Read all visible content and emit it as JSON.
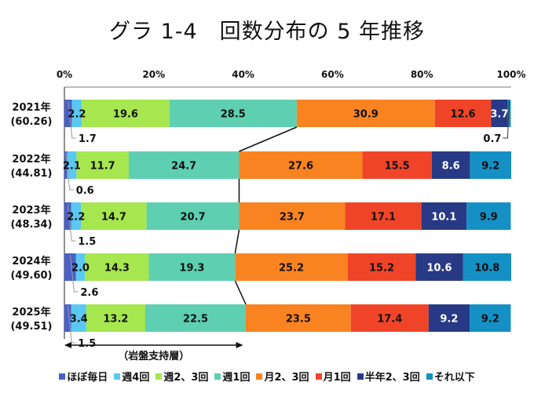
{
  "chart_data": {
    "type": "bar",
    "orientation": "horizontal-stacked-100",
    "title": "グラ 1-4　回数分布の 5 年推移",
    "x_ticks": [
      "0%",
      "20%",
      "40%",
      "60%",
      "80%",
      "100%"
    ],
    "xlim": [
      0,
      100
    ],
    "categories": [
      {
        "year": "2021年",
        "sub": "(60.26)"
      },
      {
        "year": "2022年",
        "sub": "(44.81)"
      },
      {
        "year": "2023年",
        "sub": "(48.34)"
      },
      {
        "year": "2024年",
        "sub": "(49.60)"
      },
      {
        "year": "2025年",
        "sub": "(49.51)"
      }
    ],
    "series": [
      {
        "name": "ほぼ毎日",
        "color": "#4a5fc7",
        "values": [
          1.7,
          0.6,
          1.5,
          2.6,
          1.5
        ],
        "labels": [
          "1.7",
          "0.6",
          "1.5",
          "2.6",
          "1.5"
        ],
        "label_color": "#111111",
        "callout": true
      },
      {
        "name": "週4回",
        "color": "#5bc8f2",
        "values": [
          2.2,
          2.1,
          2.2,
          2.0,
          3.4
        ],
        "labels": [
          "2.2",
          "2.1",
          "2.2",
          "2.0",
          "3.4"
        ],
        "label_color": "#111111"
      },
      {
        "name": "週2、3回",
        "color": "#a6e64f",
        "values": [
          19.6,
          11.7,
          14.7,
          14.3,
          13.2
        ],
        "labels": [
          "19.6",
          "11.7",
          "14.7",
          "14.3",
          "13.2"
        ],
        "label_color": "#111111"
      },
      {
        "name": "週1回",
        "color": "#5ecfb0",
        "values": [
          28.5,
          24.7,
          20.7,
          19.3,
          22.5
        ],
        "labels": [
          "28.5",
          "24.7",
          "20.7",
          "19.3",
          "22.5"
        ],
        "label_color": "#111111"
      },
      {
        "name": "月2、3回",
        "color": "#fa8321",
        "values": [
          30.9,
          27.6,
          23.7,
          25.2,
          23.5
        ],
        "labels": [
          "30.9",
          "27.6",
          "23.7",
          "25.2",
          "23.5"
        ],
        "label_color": "#111111"
      },
      {
        "name": "月1回",
        "color": "#f04428",
        "values": [
          12.6,
          15.5,
          17.1,
          15.2,
          17.4
        ],
        "labels": [
          "12.6",
          "15.5",
          "17.1",
          "15.2",
          "17.4"
        ],
        "label_color": "#111111"
      },
      {
        "name": "半年2、3回",
        "color": "#283a85",
        "values": [
          3.7,
          8.6,
          10.1,
          10.6,
          9.2
        ],
        "labels": [
          "3.7",
          "8.6",
          "10.1",
          "10.6",
          "9.2"
        ],
        "label_color": "#ffffff"
      },
      {
        "name": "それ以下",
        "color": "#1590c5",
        "values": [
          0.7,
          9.2,
          9.9,
          10.8,
          9.2
        ],
        "labels": [
          "0.7",
          "9.2",
          "9.9",
          "10.8",
          "9.2"
        ],
        "label_color": "#111111",
        "callout_first_only": true
      }
    ],
    "annotation": "（岩盤支持層）",
    "annotation_range": [
      0,
      40
    ],
    "legend_position": "bottom"
  }
}
